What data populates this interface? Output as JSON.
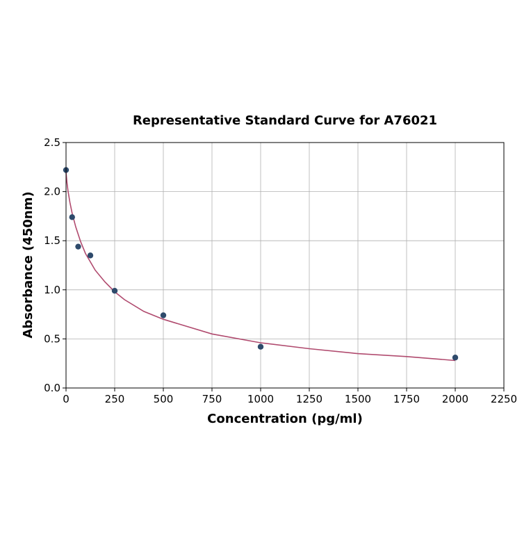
{
  "chart_data": {
    "type": "scatter",
    "title": "Representative Standard Curve for A76021",
    "xlabel": "Concentration (pg/ml)",
    "ylabel": "Absorbance (450nm)",
    "xlim": [
      0,
      2250
    ],
    "ylim": [
      0,
      2.5
    ],
    "xticks": [
      0,
      250,
      500,
      750,
      1000,
      1250,
      1500,
      1750,
      2000,
      2250
    ],
    "yticks": [
      "0.0",
      "0.5",
      "1.0",
      "1.5",
      "2.0",
      "2.5"
    ],
    "grid": true,
    "point_color": "#2e4a6b",
    "curve_color": "#b04a6e",
    "points": [
      {
        "x": 0,
        "y": 2.22
      },
      {
        "x": 31.25,
        "y": 1.74
      },
      {
        "x": 62.5,
        "y": 1.44
      },
      {
        "x": 125,
        "y": 1.35
      },
      {
        "x": 250,
        "y": 0.99
      },
      {
        "x": 500,
        "y": 0.74
      },
      {
        "x": 1000,
        "y": 0.42
      },
      {
        "x": 2000,
        "y": 0.31
      }
    ],
    "fit_curve": [
      [
        0,
        2.2
      ],
      [
        5,
        2.09
      ],
      [
        10,
        2.01
      ],
      [
        20,
        1.89
      ],
      [
        31.25,
        1.78
      ],
      [
        50,
        1.64
      ],
      [
        75,
        1.49
      ],
      [
        100,
        1.37
      ],
      [
        150,
        1.2
      ],
      [
        200,
        1.08
      ],
      [
        250,
        0.98
      ],
      [
        300,
        0.9
      ],
      [
        400,
        0.78
      ],
      [
        500,
        0.7
      ],
      [
        750,
        0.55
      ],
      [
        1000,
        0.46
      ],
      [
        1250,
        0.4
      ],
      [
        1500,
        0.35
      ],
      [
        1750,
        0.32
      ],
      [
        2000,
        0.28
      ]
    ]
  }
}
